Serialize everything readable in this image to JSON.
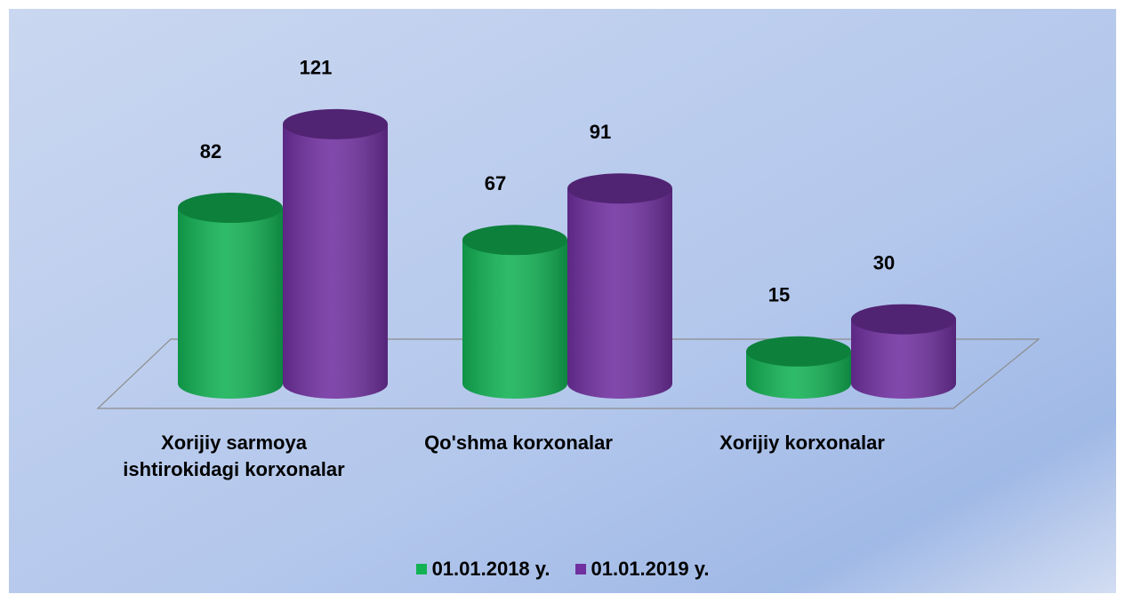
{
  "chart_data": {
    "type": "bar",
    "categories": [
      "Xorijiy sarmoya ishtirokidagi korxonalar",
      "Qo'shma korxonalar",
      "Xorijiy korxonalar"
    ],
    "series": [
      {
        "name": "01.01.2018 y.",
        "color": "#12b254",
        "values": [
          82,
          67,
          15
        ]
      },
      {
        "name": "01.01.2019 y.",
        "color": "#7030a0",
        "values": [
          121,
          91,
          30
        ]
      }
    ],
    "ylim": [
      0,
      140
    ]
  }
}
